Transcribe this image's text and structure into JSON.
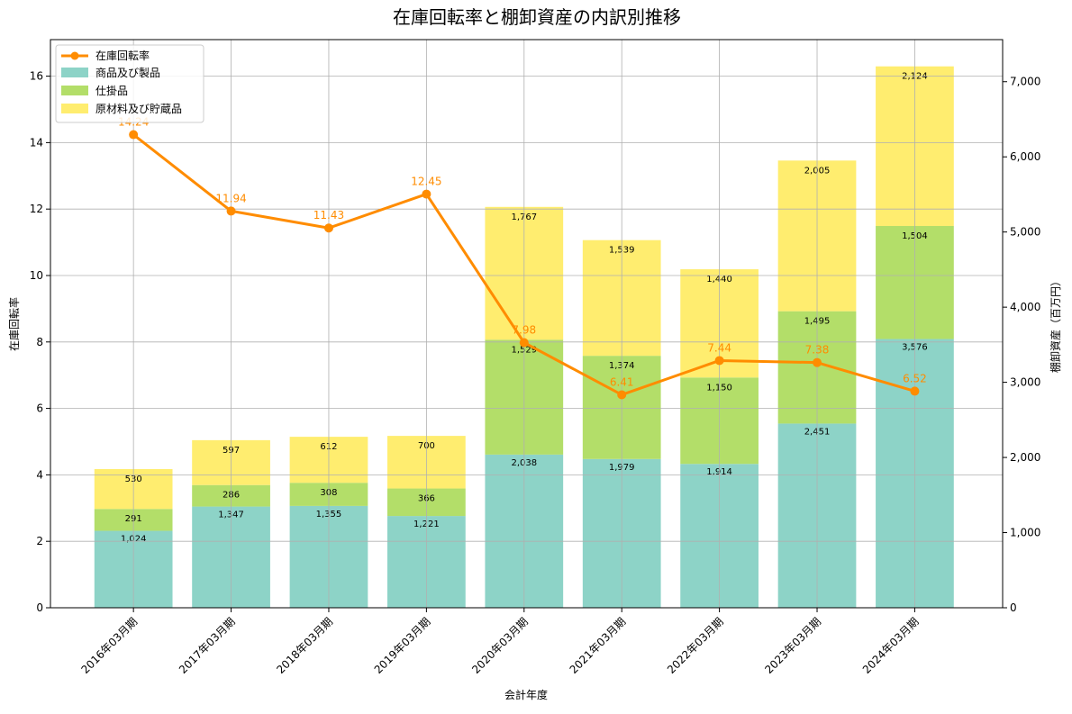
{
  "chart_data": {
    "type": "bar",
    "title": "在庫回転率と棚卸資産の内訳別推移",
    "xlabel": "会計年度",
    "ylabel_left": "在庫回転率",
    "ylabel_right": "棚卸資産（百万円）",
    "categories": [
      "2016年03月期",
      "2017年03月期",
      "2018年03月期",
      "2019年03月期",
      "2020年03月期",
      "2021年03月期",
      "2022年03月期",
      "2023年03月期",
      "2024年03月期"
    ],
    "ylim_left": [
      0,
      17.1
    ],
    "ylim_right": [
      0,
      7560
    ],
    "yticks_left": [
      0,
      2,
      4,
      6,
      8,
      10,
      12,
      14,
      16
    ],
    "yticks_right": [
      0,
      1000,
      2000,
      3000,
      4000,
      5000,
      6000,
      7000
    ],
    "ytick_labels_left": [
      "0",
      "2",
      "4",
      "6",
      "8",
      "10",
      "12",
      "14",
      "16"
    ],
    "ytick_labels_right": [
      "0",
      "1,000",
      "2,000",
      "3,000",
      "4,000",
      "5,000",
      "6,000",
      "7,000"
    ],
    "grid": true,
    "legend_position": "top-left",
    "stacked_series": [
      {
        "name": "商品及び製品",
        "color": "#8dd3c7",
        "values": [
          1024,
          1347,
          1355,
          1221,
          2038,
          1979,
          1914,
          2451,
          3576
        ],
        "labels": [
          "1,024",
          "1,347",
          "1,355",
          "1,221",
          "2,038",
          "1,979",
          "1,914",
          "2,451",
          "3,576"
        ]
      },
      {
        "name": "仕掛品",
        "color": "#b3de69",
        "values": [
          291,
          286,
          308,
          366,
          1529,
          1374,
          1150,
          1495,
          1504
        ],
        "labels": [
          "291",
          "286",
          "308",
          "366",
          "1,529",
          "1,374",
          "1,150",
          "1,495",
          "1,504"
        ]
      },
      {
        "name": "原材料及び貯蔵品",
        "color": "#ffed6f",
        "values": [
          530,
          597,
          612,
          700,
          1767,
          1539,
          1440,
          2005,
          2124
        ],
        "labels": [
          "530",
          "597",
          "612",
          "700",
          "1,767",
          "1,539",
          "1,440",
          "2,005",
          "2,124"
        ]
      }
    ],
    "line_series": {
      "name": "在庫回転率",
      "color": "#ff8c00",
      "values": [
        14.24,
        11.94,
        11.43,
        12.45,
        7.98,
        6.41,
        7.44,
        7.38,
        6.52
      ],
      "labels": [
        "14.24",
        "11.94",
        "11.43",
        "12.45",
        "7.98",
        "6.41",
        "7.44",
        "7.38",
        "6.52"
      ]
    }
  }
}
